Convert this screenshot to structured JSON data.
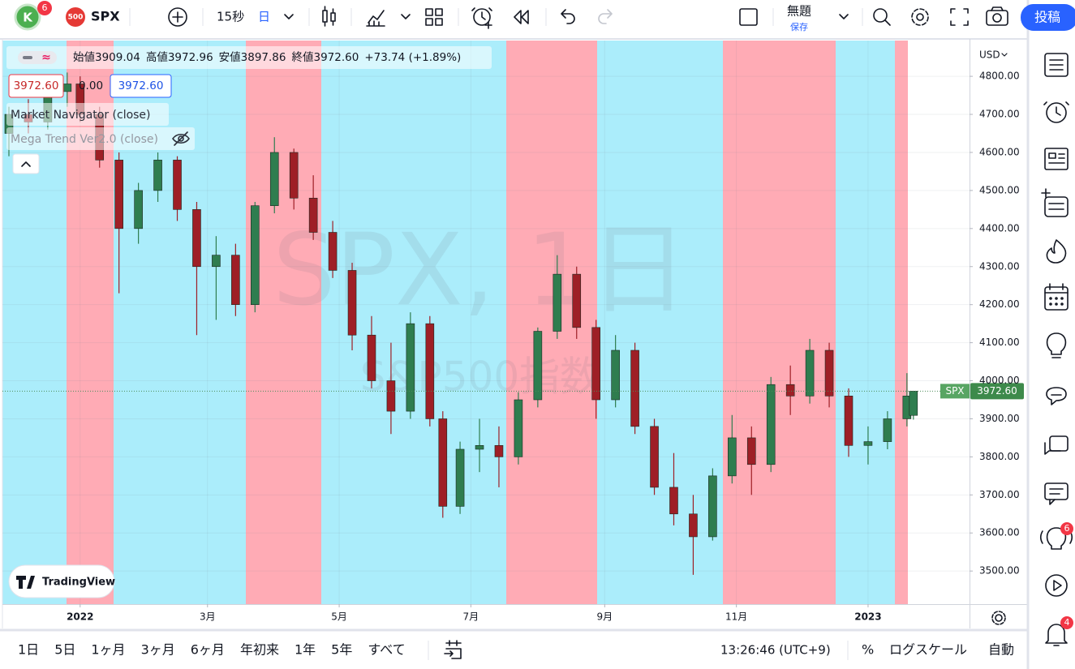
{
  "toolbar": {
    "avatar": "K",
    "avatar_badge": "6",
    "symbol_icon": "500",
    "symbol": "SPX",
    "interval": "15秒",
    "chart_interval": "日",
    "layout_name": "無題",
    "save": "保存",
    "publish": "投稿"
  },
  "legend": {
    "ohlc": [
      {
        "label": "始値",
        "value": "3909.04"
      },
      {
        "label": "高値",
        "value": "3972.96"
      },
      {
        "label": "安値",
        "value": "3897.86"
      },
      {
        "label": "終値",
        "value": "3972.60"
      }
    ],
    "change": "+73.74 (+1.89%)",
    "inputs": [
      "3972.60",
      "0.00",
      "3972.60"
    ],
    "indicators": [
      "Market Navigator (close)",
      "Mega Trend Ver2.0 (close)"
    ]
  },
  "watermark": {
    "symbol": "SPX, 1日",
    "description": "S&P500指数"
  },
  "price_axis": {
    "currency": "USD",
    "last_symbol": "SPX",
    "last_price": "3972.60"
  },
  "logo": "TradingView",
  "chart_data": {
    "type": "candlestick",
    "up_color": "#2f7d4f",
    "down_color": "#9e1f26",
    "x": [
      -33,
      -24,
      -15,
      -6,
      0,
      9,
      18,
      27,
      36,
      45,
      54,
      63,
      72,
      81,
      90,
      99,
      108,
      117,
      126,
      135,
      144,
      153,
      162,
      168,
      176,
      185,
      194,
      203,
      212,
      221,
      230,
      239,
      248,
      257,
      266,
      275,
      284,
      293,
      302,
      311,
      320,
      329,
      338,
      347,
      356,
      365,
      374,
      383,
      386
    ],
    "open": [
      4650,
      4700,
      4680,
      4760,
      4780,
      4700,
      4580,
      4400,
      4500,
      4580,
      4450,
      4300,
      4330,
      4200,
      4460,
      4600,
      4480,
      4390,
      4290,
      4120,
      4000,
      3920,
      4150,
      3900,
      3670,
      3820,
      3830,
      3800,
      3950,
      4130,
      4280,
      4140,
      3950,
      4080,
      3880,
      3720,
      3650,
      3590,
      3750,
      3850,
      3780,
      3990,
      3960,
      4080,
      3960,
      3830,
      3840,
      3900,
      3909.04
    ],
    "high": [
      4720,
      4740,
      4790,
      4810,
      4800,
      4720,
      4600,
      4520,
      4600,
      4590,
      4470,
      4380,
      4360,
      4470,
      4640,
      4610,
      4540,
      4420,
      4310,
      4170,
      4100,
      4180,
      4170,
      3920,
      3840,
      3900,
      3880,
      3970,
      4140,
      4330,
      4300,
      4160,
      4120,
      4100,
      3900,
      3810,
      3700,
      3770,
      3910,
      3880,
      4010,
      4040,
      4110,
      4100,
      3980,
      3880,
      3920,
      4020,
      3972.96
    ],
    "low": [
      4590,
      4650,
      4660,
      4720,
      4680,
      4560,
      4230,
      4360,
      4470,
      4420,
      4120,
      4160,
      4170,
      4180,
      4440,
      4450,
      4370,
      4270,
      4080,
      3980,
      3860,
      3900,
      3880,
      3640,
      3650,
      3760,
      3720,
      3780,
      3930,
      4110,
      4110,
      3900,
      3930,
      3860,
      3700,
      3620,
      3490,
      3580,
      3730,
      3700,
      3760,
      3910,
      3940,
      3930,
      3800,
      3780,
      3820,
      3880,
      3897.86
    ],
    "close": [
      4700,
      4680,
      4760,
      4780,
      4700,
      4580,
      4400,
      4500,
      4580,
      4450,
      4300,
      4330,
      4200,
      4460,
      4600,
      4480,
      4390,
      4290,
      4120,
      4000,
      3920,
      4150,
      3900,
      3670,
      3820,
      3830,
      3800,
      3950,
      4130,
      4280,
      4140,
      3950,
      4080,
      3880,
      3720,
      3650,
      3590,
      3750,
      3850,
      3780,
      3990,
      3960,
      4080,
      3960,
      3830,
      3840,
      3900,
      3960,
      3972.6
    ],
    "xlim": [
      -36,
      412
    ],
    "xticks": [
      {
        "value": 0,
        "label": "2022"
      },
      {
        "value": 59,
        "label": "3月"
      },
      {
        "value": 120,
        "label": "5月"
      },
      {
        "value": 181,
        "label": "7月"
      },
      {
        "value": 243,
        "label": "9月"
      },
      {
        "value": 304,
        "label": "11月"
      },
      {
        "value": 365,
        "label": "2023"
      }
    ],
    "ylim": [
      3413,
      4894
    ],
    "yticks": [
      {
        "value": 3500,
        "label": "3500.00"
      },
      {
        "value": 3600,
        "label": "3600.00"
      },
      {
        "value": 3700,
        "label": "3700.00"
      },
      {
        "value": 3800,
        "label": "3800.00"
      },
      {
        "value": 3900,
        "label": "3900.00"
      },
      {
        "value": 4000,
        "label": "4000.00"
      },
      {
        "value": 4100,
        "label": "4100.00"
      },
      {
        "value": 4200,
        "label": "4200.00"
      },
      {
        "value": 4300,
        "label": "4300.00"
      },
      {
        "value": 4400,
        "label": "4400.00"
      },
      {
        "value": 4500,
        "label": "4500.00"
      },
      {
        "value": 4600,
        "label": "4600.00"
      },
      {
        "value": 4700,
        "label": "4700.00"
      },
      {
        "value": 4800,
        "label": "4800.00"
      }
    ],
    "grid": true
  },
  "bottom_bar": {
    "ranges": [
      "1日",
      "5日",
      "1ヶ月",
      "3ヶ月",
      "6ヶ月",
      "年初来",
      "1年",
      "5年",
      "すべて"
    ],
    "clock": "13:26:46 (UTC+9)",
    "percent": "%",
    "log_scale": "ログスケール",
    "auto": "自動"
  },
  "sidebar": {
    "badges": [
      "6",
      "4"
    ]
  }
}
